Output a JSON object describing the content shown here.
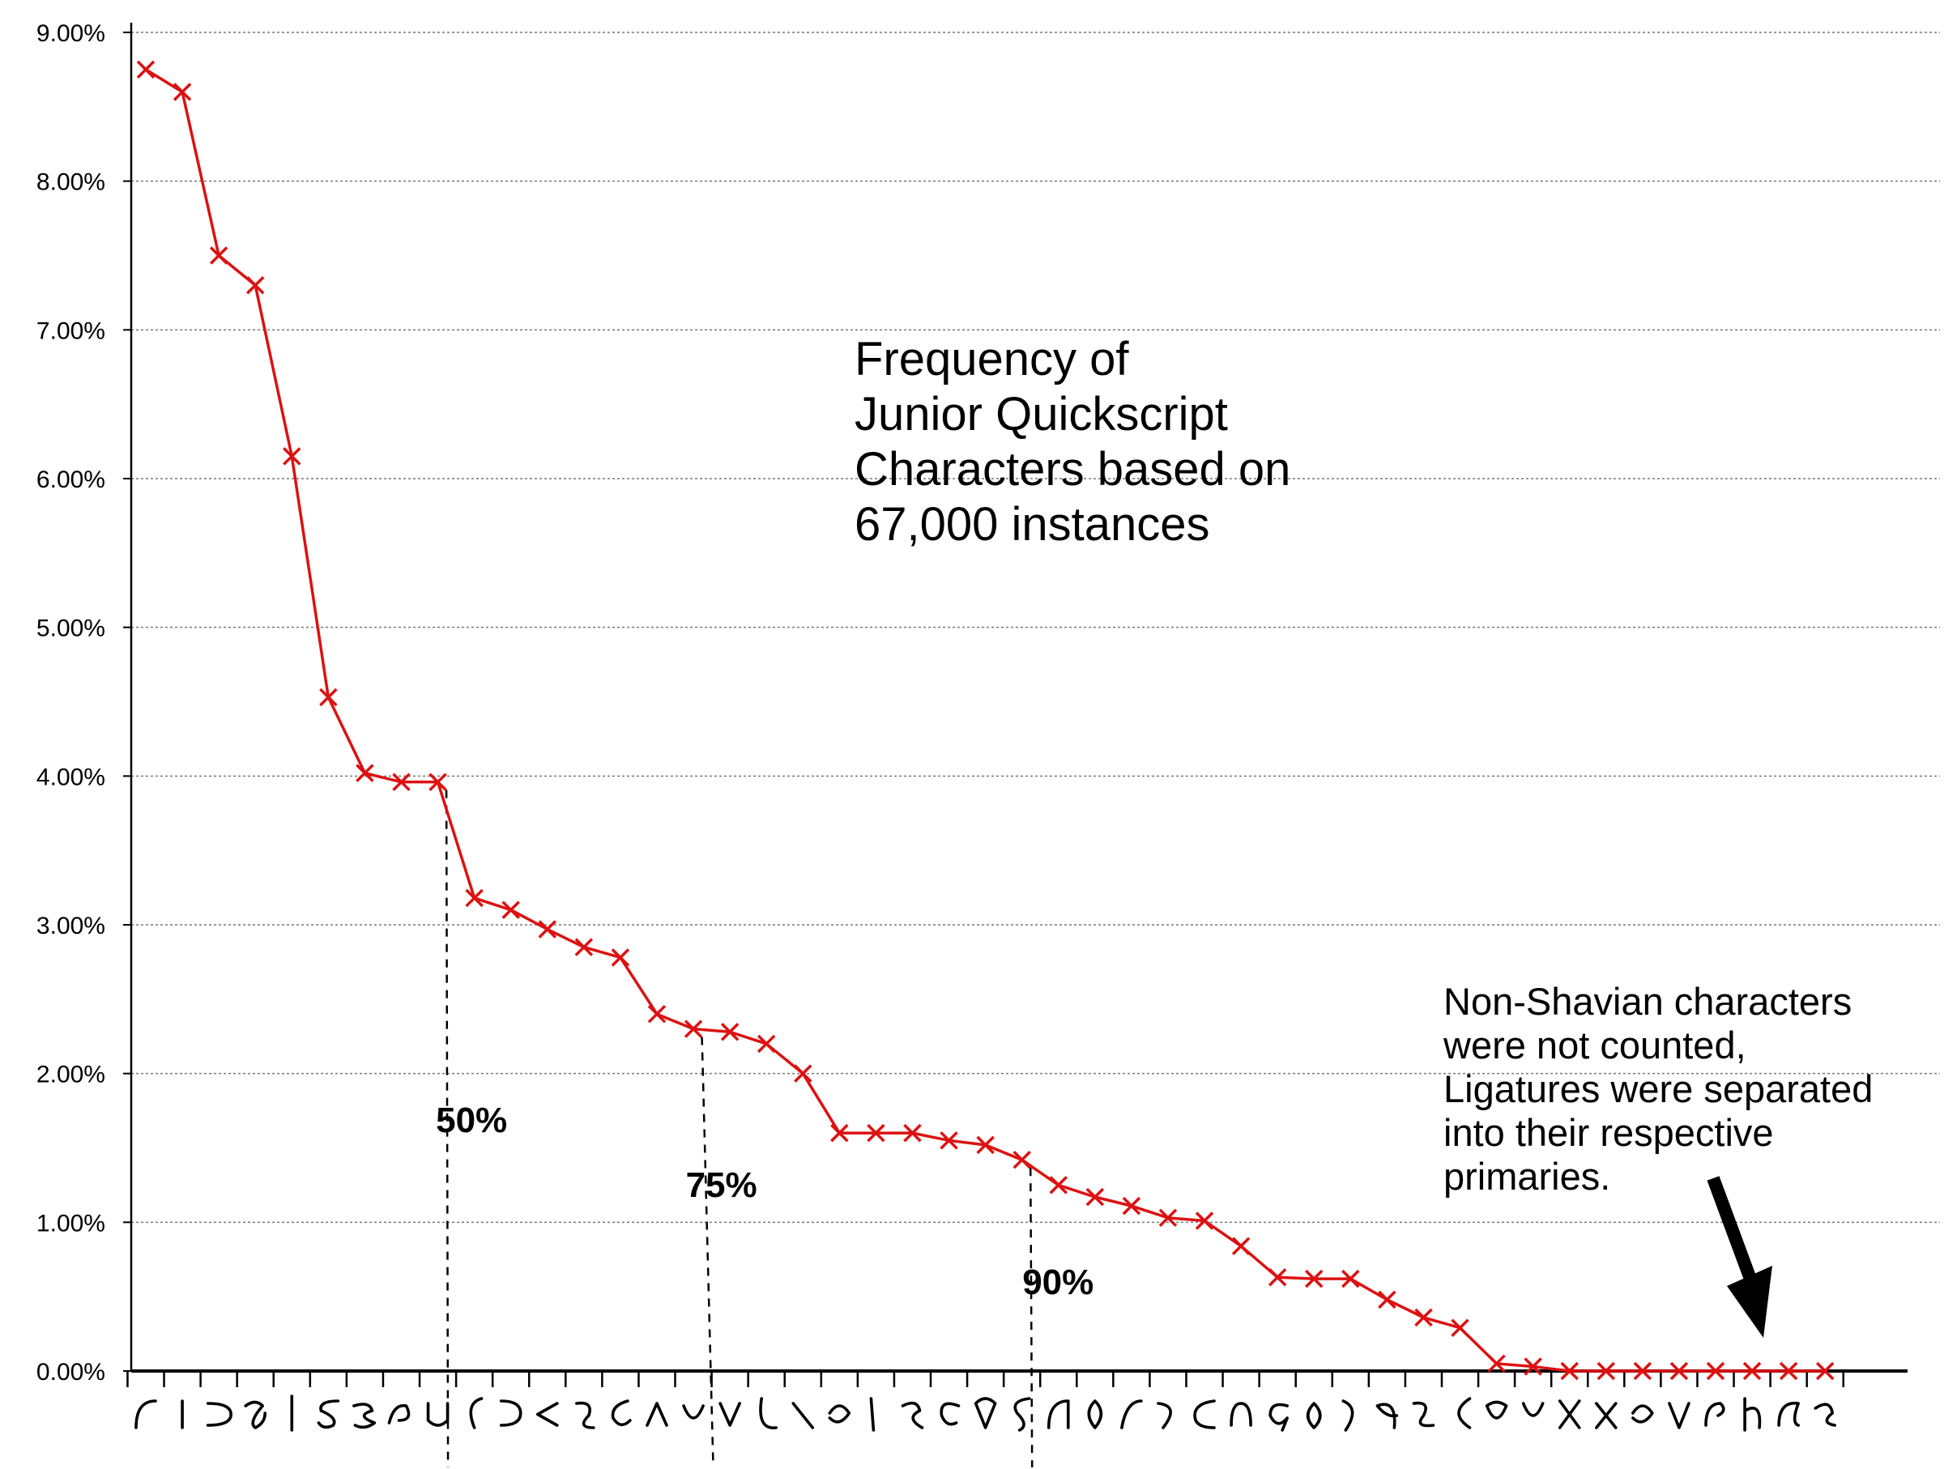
{
  "chart_data": {
    "type": "line",
    "title": [
      "Frequency of",
      "Junior Quickscript",
      "Characters based on",
      "67,000 instances"
    ],
    "note": [
      "Non-Shavian characters",
      "were not counted,",
      "Ligatures were separated",
      "into their respective",
      "primaries."
    ],
    "ylim": [
      0,
      9
    ],
    "y_tick_labels": [
      "0.00%",
      "1.00%",
      "2.00%",
      "3.00%",
      "4.00%",
      "5.00%",
      "6.00%",
      "7.00%",
      "8.00%",
      "9.00%"
    ],
    "grid": "horizontal dotted",
    "x_axis": "47 Junior Quickscript characters (glyphs)",
    "values": [
      8.75,
      8.6,
      7.5,
      7.3,
      6.15,
      4.53,
      4.02,
      3.96,
      3.96,
      3.18,
      3.1,
      2.97,
      2.85,
      2.78,
      2.4,
      2.3,
      2.28,
      2.2,
      2.0,
      1.6,
      1.6,
      1.6,
      1.55,
      1.52,
      1.42,
      1.25,
      1.17,
      1.11,
      1.03,
      1.01,
      0.84,
      0.63,
      0.62,
      0.62,
      0.48,
      0.36,
      0.29,
      0.05,
      0.03,
      0.0,
      0.0,
      0.0,
      0.0,
      0.0,
      0.0,
      0.0,
      0.0
    ],
    "cumulative_markers": [
      {
        "label": "50%",
        "after_index": 8
      },
      {
        "label": "75%",
        "after_index": 15
      },
      {
        "label": "90%",
        "after_index": 24
      }
    ],
    "series_color": "#dd1111"
  }
}
